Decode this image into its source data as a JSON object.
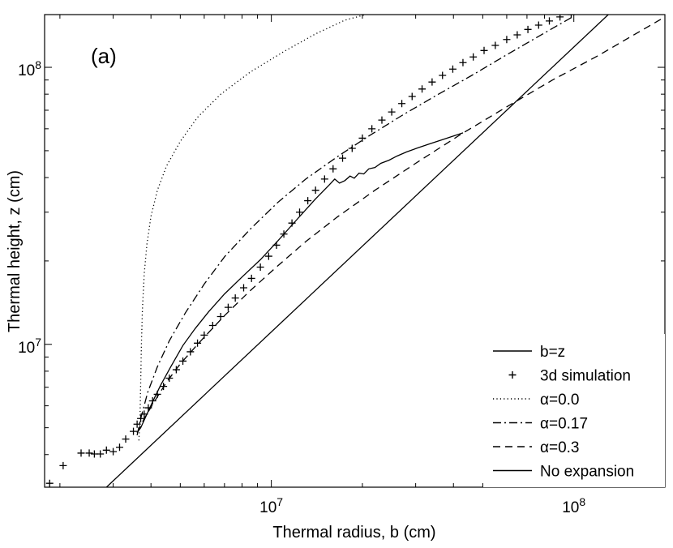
{
  "chart_data": {
    "type": "line",
    "panel_label": "(a)",
    "xlabel": "Thermal radius, b (cm)",
    "ylabel": "Thermal height, z (cm)",
    "xscale": "log",
    "yscale": "log",
    "xlim": [
      1780000.0,
      200000000.0
    ],
    "ylim": [
      3050000.0,
      155000000.0
    ],
    "grid": false,
    "legend_position": "bottom-right",
    "x_ticks": [
      {
        "value": 10000000.0,
        "base": "10",
        "exp": "7"
      },
      {
        "value": 100000000.0,
        "base": "10",
        "exp": "8"
      }
    ],
    "y_ticks": [
      {
        "value": 10000000.0,
        "base": "10",
        "exp": "7"
      },
      {
        "value": 100000000.0,
        "base": "10",
        "exp": "8"
      }
    ],
    "series": [
      {
        "name": "b=z",
        "style": "solid",
        "x": [
          3600000.0,
          3700000.0,
          3850000.0,
          4050000.0,
          4300000.0,
          4650000.0,
          5100000.0,
          5600000.0,
          6200000.0,
          7000000.0,
          8000000.0,
          9200000.0,
          10500000.0,
          12000000.0,
          14000000.0,
          15500000.0,
          16200000.0,
          16800000.0,
          17500000.0,
          18200000.0,
          18800000.0,
          19500000.0,
          20200000.0,
          21000000.0,
          22000000.0,
          23000000.0,
          24500000.0,
          26000000.0,
          28000000.0,
          30500000.0,
          33500000.0,
          37500000.0,
          43000000.0
        ],
        "y": [
          4800000.0,
          5000000.0,
          5500000.0,
          6200000.0,
          7100000.0,
          8300000.0,
          9900000.0,
          11400000.0,
          13100000.0,
          15200000.0,
          17500000.0,
          20200000.0,
          23600000.0,
          27800000.0,
          33500000.0,
          37500000.0,
          39500000.0,
          38200000.0,
          39000000.0,
          40500000.0,
          39800000.0,
          41500000.0,
          41200000.0,
          43000000.0,
          43500000.0,
          45000000.0,
          46200000.0,
          47800000.0,
          49500000.0,
          51200000.0,
          53000000.0,
          55200000.0,
          58000000.0
        ]
      },
      {
        "name": "3d simulation",
        "style": "marker-plus",
        "x": [
          1850000.0,
          2050000.0,
          2350000.0,
          2500000.0,
          2600000.0,
          2720000.0,
          2850000.0,
          3000000.0,
          3150000.0,
          3300000.0,
          3500000.0,
          3600000.0,
          3700000.0,
          3800000.0,
          3920000.0,
          4050000.0,
          4200000.0,
          4400000.0,
          4600000.0,
          4850000.0,
          5100000.0,
          5400000.0,
          5700000.0,
          6000000.0,
          6400000.0,
          6800000.0,
          7200000.0,
          7600000.0,
          8100000.0,
          8600000.0,
          9200000.0,
          9800000.0,
          10400000.0,
          11000000.0,
          11700000.0,
          12400000.0,
          13200000.0,
          14000000.0,
          15000000.0,
          16000000.0,
          17200000.0,
          18500000.0,
          20000000.0,
          21500000.0,
          23200000.0,
          25000000.0,
          27000000.0,
          29200000.0,
          31500000.0,
          34000000.0,
          36800000.0,
          39800000.0,
          43000000.0,
          46500000.0,
          50500000.0,
          55000000.0,
          60000000.0,
          65000000.0,
          70500000.0,
          76500000.0,
          83000000.0,
          90000000.0,
          98000000.0
        ],
        "y": [
          3150000.0,
          3650000.0,
          4050000.0,
          4050000.0,
          4020000.0,
          4020000.0,
          4150000.0,
          4100000.0,
          4250000.0,
          4550000.0,
          4850000.0,
          5150000.0,
          5400000.0,
          5600000.0,
          5900000.0,
          6250000.0,
          6600000.0,
          7050000.0,
          7550000.0,
          8100000.0,
          8700000.0,
          9400000.0,
          10100000.0,
          10800000.0,
          11700000.0,
          12600000.0,
          13600000.0,
          14700000.0,
          16000000.0,
          17300000.0,
          19000000.0,
          20800000.0,
          22800000.0,
          25000000.0,
          27400000.0,
          30000000.0,
          33000000.0,
          36000000.0,
          39500000.0,
          43000000.0,
          47000000.0,
          51000000.0,
          55500000.0,
          60000000.0,
          64500000.0,
          69000000.0,
          74000000.0,
          78500000.0,
          83500000.0,
          88500000.0,
          93500000.0,
          98500000.0,
          104000000.0,
          109000000.0,
          115000000.0,
          120000000.0,
          126000000.0,
          131000000.0,
          137000000.0,
          142000000.0,
          147000000.0,
          152000000.0,
          155000000.0
        ]
      },
      {
        "name": "α=0.0",
        "style": "dotted",
        "x": [
          3650000.0,
          3680000.0,
          3700000.0,
          3720000.0,
          3750000.0,
          3800000.0,
          3880000.0,
          4000000.0,
          4200000.0,
          4500000.0,
          5000000.0,
          5700000.0,
          6800000.0,
          8500000.0,
          11000000.0,
          14000000.0,
          17500000.0,
          20500000.0
        ],
        "y": [
          4500000.0,
          5500000.0,
          7500000.0,
          10000000.0,
          13500000.0,
          18000000.0,
          23000000.0,
          29000000.0,
          36000000.0,
          44000000.0,
          54000000.0,
          66000000.0,
          80000000.0,
          96000000.0,
          114000000.0,
          132000000.0,
          148000000.0,
          155000000.0
        ]
      },
      {
        "name": "α=0.17",
        "style": "dashdot",
        "x": [
          3600000.0,
          3700000.0,
          3900000.0,
          4200000.0,
          4600000.0,
          5200000.0,
          6000000.0,
          7000000.0,
          8500000.0,
          10500000.0,
          13000000.0,
          16500000.0,
          21000000.0,
          27000000.0,
          35000000.0,
          46000000.0,
          60000000.0,
          80000000.0,
          100000000.0
        ],
        "y": [
          4700000.0,
          5400000.0,
          6700000.0,
          8300000.0,
          10300000.0,
          13000000.0,
          16500000.0,
          20700000.0,
          26000000.0,
          32500000.0,
          39500000.0,
          47500000.0,
          56500000.0,
          67000000.0,
          79000000.0,
          93500000.0,
          111000000.0,
          133000000.0,
          153000000.0
        ]
      },
      {
        "name": "α=0.3",
        "style": "dashed",
        "x": [
          3600000.0,
          3800000.0,
          4100000.0,
          4500000.0,
          5000000.0,
          5800000.0,
          7000000.0,
          8500000.0,
          10500000.0,
          13000000.0,
          16500000.0,
          22000000.0,
          30000000.0,
          42000000.0,
          60000000.0,
          85000000.0,
          120000000.0,
          160000000.0,
          200000000.0
        ],
        "y": [
          4800000.0,
          5400000.0,
          6200000.0,
          7300000.0,
          8500000.0,
          10200000.0,
          12700000.0,
          15600000.0,
          19200000.0,
          23500000.0,
          28800000.0,
          36000000.0,
          45000000.0,
          57000000.0,
          72000000.0,
          90000000.0,
          110000000.0,
          132000000.0,
          152000000.0
        ]
      },
      {
        "name": "No expansion",
        "style": "solid",
        "x": [
          2850000.0,
          130000000.0
        ],
        "y": [
          3050000.0,
          155000000.0
        ]
      }
    ]
  }
}
